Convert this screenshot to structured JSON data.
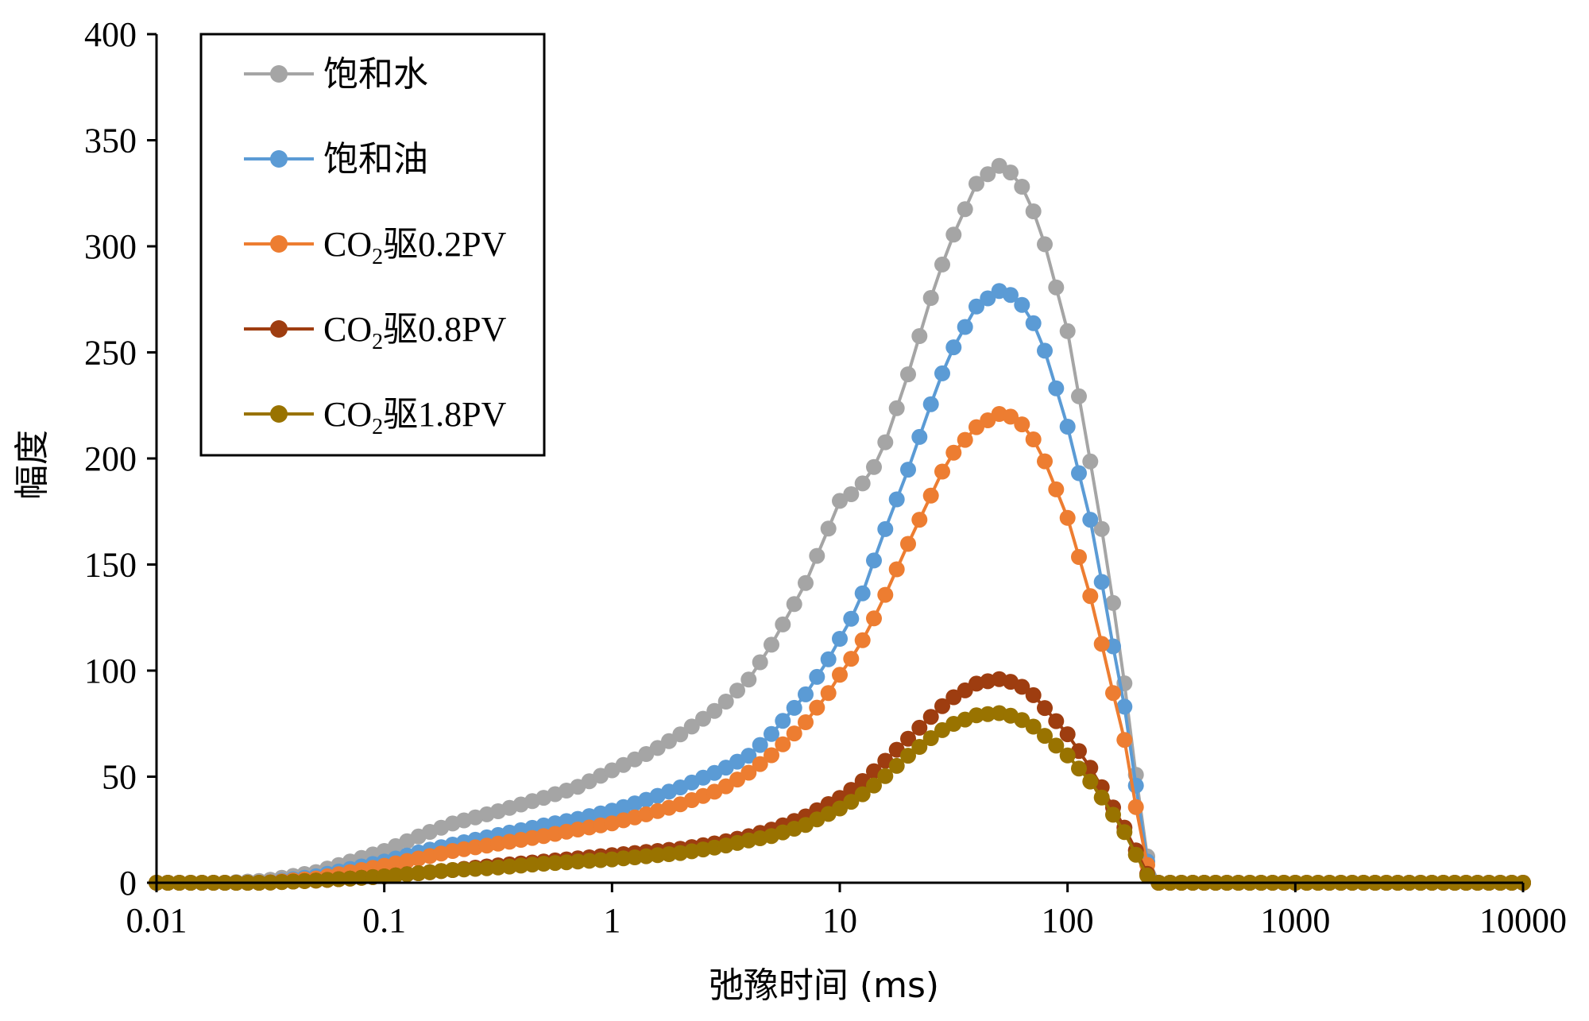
{
  "chart_data": {
    "type": "line",
    "title": "",
    "xlabel": "弛豫时间 (ms)",
    "ylabel": "幅度",
    "xscale": "log",
    "xlim": [
      0.01,
      10000
    ],
    "ylim": [
      0,
      400
    ],
    "x_ticks": [
      "0.01",
      "0.1",
      "1",
      "10",
      "100",
      "1000",
      "10000"
    ],
    "y_ticks": [
      "0",
      "50",
      "100",
      "150",
      "200",
      "250",
      "300",
      "350",
      "400"
    ],
    "legend_position": "top-left",
    "series": [
      {
        "name": "饱和水",
        "color": "#A5A5A5",
        "anchors": [
          [
            0.01,
            0
          ],
          [
            0.02,
            0
          ],
          [
            0.03,
            1
          ],
          [
            0.05,
            5
          ],
          [
            0.1,
            15
          ],
          [
            0.15,
            23
          ],
          [
            0.2,
            28
          ],
          [
            0.3,
            33
          ],
          [
            0.5,
            40
          ],
          [
            0.7,
            45
          ],
          [
            1,
            53
          ],
          [
            1.5,
            62
          ],
          [
            2,
            70
          ],
          [
            3,
            83
          ],
          [
            4,
            96
          ],
          [
            5,
            112
          ],
          [
            7,
            140
          ],
          [
            9,
            168
          ],
          [
            10,
            180
          ],
          [
            12,
            185
          ],
          [
            15,
            200
          ],
          [
            20,
            240
          ],
          [
            25,
            275
          ],
          [
            30,
            300
          ],
          [
            40,
            330
          ],
          [
            50,
            338
          ],
          [
            60,
            333
          ],
          [
            70,
            318
          ],
          [
            80,
            300
          ],
          [
            100,
            260
          ],
          [
            130,
            190
          ],
          [
            150,
            150
          ],
          [
            180,
            90
          ],
          [
            200,
            50
          ],
          [
            220,
            15
          ],
          [
            240,
            2
          ],
          [
            250,
            0
          ],
          [
            10000,
            0
          ]
        ]
      },
      {
        "name": "饱和油",
        "color": "#5B9BD5",
        "anchors": [
          [
            0.01,
            0
          ],
          [
            0.02,
            0
          ],
          [
            0.03,
            0
          ],
          [
            0.05,
            3
          ],
          [
            0.1,
            10
          ],
          [
            0.15,
            15
          ],
          [
            0.2,
            18
          ],
          [
            0.3,
            22
          ],
          [
            0.5,
            27
          ],
          [
            0.7,
            30
          ],
          [
            1,
            34
          ],
          [
            1.5,
            40
          ],
          [
            2,
            45
          ],
          [
            3,
            53
          ],
          [
            4,
            60
          ],
          [
            5,
            70
          ],
          [
            7,
            88
          ],
          [
            9,
            106
          ],
          [
            10,
            115
          ],
          [
            12,
            130
          ],
          [
            15,
            160
          ],
          [
            20,
            195
          ],
          [
            25,
            225
          ],
          [
            30,
            248
          ],
          [
            40,
            272
          ],
          [
            50,
            279
          ],
          [
            60,
            276
          ],
          [
            70,
            265
          ],
          [
            80,
            250
          ],
          [
            100,
            215
          ],
          [
            130,
            165
          ],
          [
            150,
            125
          ],
          [
            180,
            80
          ],
          [
            200,
            45
          ],
          [
            220,
            12
          ],
          [
            240,
            2
          ],
          [
            250,
            0
          ],
          [
            10000,
            0
          ]
        ]
      },
      {
        "name": "CO2驱0.2PV",
        "color": "#ED7D31",
        "anchors": [
          [
            0.01,
            0
          ],
          [
            0.02,
            0
          ],
          [
            0.03,
            0
          ],
          [
            0.05,
            2
          ],
          [
            0.1,
            8
          ],
          [
            0.15,
            12
          ],
          [
            0.2,
            15
          ],
          [
            0.3,
            18
          ],
          [
            0.5,
            22
          ],
          [
            0.7,
            25
          ],
          [
            1,
            28
          ],
          [
            1.5,
            33
          ],
          [
            2,
            37
          ],
          [
            3,
            44
          ],
          [
            4,
            52
          ],
          [
            5,
            60
          ],
          [
            7,
            75
          ],
          [
            9,
            90
          ],
          [
            10,
            98
          ],
          [
            12,
            110
          ],
          [
            15,
            130
          ],
          [
            20,
            160
          ],
          [
            25,
            182
          ],
          [
            30,
            200
          ],
          [
            40,
            215
          ],
          [
            50,
            221
          ],
          [
            60,
            219
          ],
          [
            70,
            210
          ],
          [
            80,
            198
          ],
          [
            100,
            172
          ],
          [
            130,
            130
          ],
          [
            150,
            100
          ],
          [
            180,
            65
          ],
          [
            200,
            35
          ],
          [
            220,
            10
          ],
          [
            240,
            2
          ],
          [
            250,
            0
          ],
          [
            10000,
            0
          ]
        ]
      },
      {
        "name": "CO2驱0.8PV",
        "color": "#9E3D10",
        "anchors": [
          [
            0.01,
            0
          ],
          [
            0.02,
            0
          ],
          [
            0.03,
            0
          ],
          [
            0.05,
            1
          ],
          [
            0.1,
            3
          ],
          [
            0.2,
            6
          ],
          [
            0.3,
            8
          ],
          [
            0.5,
            10
          ],
          [
            1,
            13
          ],
          [
            2,
            16
          ],
          [
            3,
            19
          ],
          [
            4,
            22
          ],
          [
            5,
            25
          ],
          [
            7,
            31
          ],
          [
            10,
            40
          ],
          [
            12,
            46
          ],
          [
            15,
            55
          ],
          [
            20,
            68
          ],
          [
            25,
            78
          ],
          [
            30,
            86
          ],
          [
            40,
            94
          ],
          [
            50,
            96
          ],
          [
            60,
            94
          ],
          [
            70,
            89
          ],
          [
            80,
            82
          ],
          [
            100,
            70
          ],
          [
            130,
            52
          ],
          [
            150,
            40
          ],
          [
            180,
            25
          ],
          [
            200,
            15
          ],
          [
            220,
            5
          ],
          [
            240,
            1
          ],
          [
            250,
            0
          ],
          [
            10000,
            0
          ]
        ]
      },
      {
        "name": "CO2驱1.8PV",
        "color": "#997300",
        "anchors": [
          [
            0.01,
            0
          ],
          [
            0.02,
            0
          ],
          [
            0.03,
            0
          ],
          [
            0.05,
            1
          ],
          [
            0.1,
            3
          ],
          [
            0.2,
            6
          ],
          [
            0.3,
            7
          ],
          [
            0.5,
            9
          ],
          [
            1,
            11
          ],
          [
            2,
            14
          ],
          [
            3,
            17
          ],
          [
            4,
            20
          ],
          [
            5,
            22
          ],
          [
            7,
            27
          ],
          [
            10,
            35
          ],
          [
            12,
            40
          ],
          [
            15,
            48
          ],
          [
            20,
            60
          ],
          [
            25,
            68
          ],
          [
            30,
            74
          ],
          [
            40,
            79
          ],
          [
            50,
            80
          ],
          [
            60,
            78
          ],
          [
            70,
            74
          ],
          [
            80,
            69
          ],
          [
            100,
            60
          ],
          [
            130,
            46
          ],
          [
            150,
            36
          ],
          [
            180,
            23
          ],
          [
            200,
            13
          ],
          [
            220,
            4
          ],
          [
            240,
            1
          ],
          [
            250,
            0
          ],
          [
            10000,
            0
          ]
        ]
      }
    ]
  }
}
